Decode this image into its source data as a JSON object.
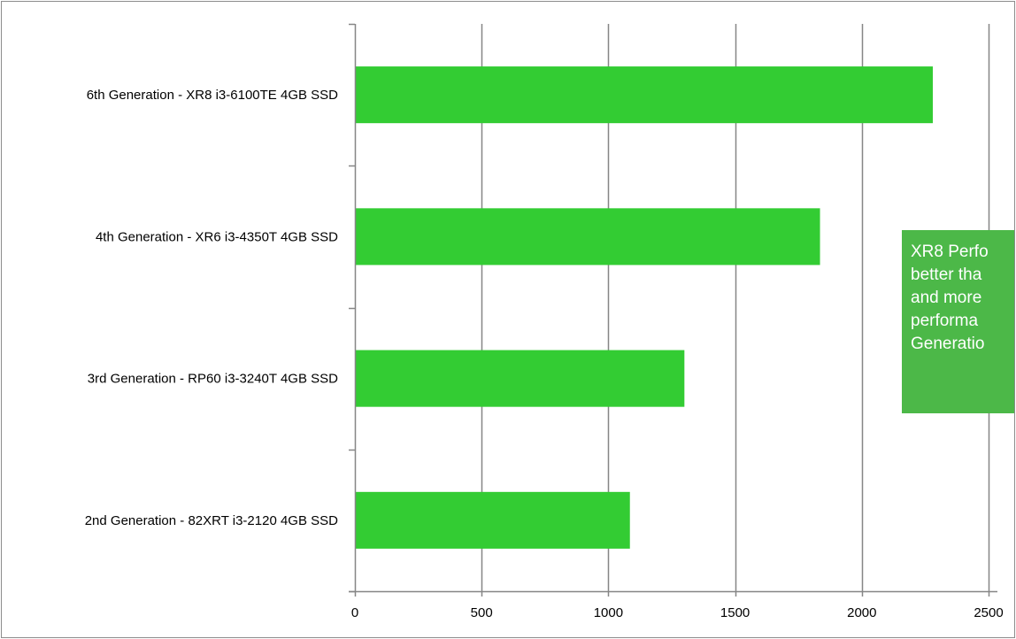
{
  "chart_data": {
    "type": "bar",
    "orientation": "horizontal",
    "categories": [
      "6th Generation - XR8 i3-6100TE 4GB SSD",
      "4th Generation - XR6 i3-4350T 4GB SSD",
      "3rd Generation - RP60  i3-3240T 4GB SSD",
      "2nd Generation - 82XRT i3-2120 4GB SSD"
    ],
    "values": [
      2280,
      1835,
      1300,
      1085
    ],
    "xlim": [
      0,
      2500
    ],
    "xticks": [
      0,
      500,
      1000,
      1500,
      2000,
      2500
    ],
    "grid": true,
    "bar_color": "#33cc33",
    "grid_color": "#868686",
    "title": "",
    "xlabel": "",
    "ylabel": "",
    "annotation": {
      "text": "XR8 Perfo\nbetter tha\nand more\nperforma\nGeneratio",
      "background": "#4cb848",
      "color": "#ffffff"
    }
  }
}
